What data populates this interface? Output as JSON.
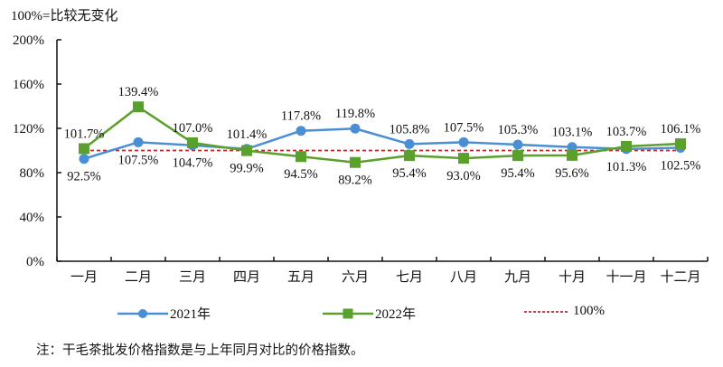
{
  "header": {
    "note": "100%=比较无变化"
  },
  "footnote": "注：干毛茶批发价格指数是与上年同月对比的价格指数。",
  "legend": {
    "s2021": "2021年",
    "s2022": "2022年",
    "ref": "100%"
  },
  "colors": {
    "series_2021": "#4a8fd4",
    "series_2022": "#5aa02c",
    "reference": "#c0272d",
    "axis": "#111111"
  },
  "chart_data": {
    "type": "line",
    "title": "",
    "subtitle": "100%=比较无变化",
    "xlabel": "",
    "ylabel": "",
    "ylim": [
      0,
      200
    ],
    "yticks": [
      "0%",
      "40%",
      "80%",
      "120%",
      "160%",
      "200%"
    ],
    "grid": false,
    "legend_position": "bottom",
    "categories": [
      "一月",
      "二月",
      "三月",
      "四月",
      "五月",
      "六月",
      "七月",
      "八月",
      "九月",
      "十月",
      "十一月",
      "十二月"
    ],
    "series": [
      {
        "name": "2021年",
        "marker": "circle",
        "color": "#4a8fd4",
        "values": [
          92.5,
          107.5,
          104.7,
          101.4,
          117.8,
          119.8,
          105.8,
          107.5,
          105.3,
          103.1,
          101.3,
          102.5
        ],
        "labels": [
          "92.5%",
          "107.5%",
          "104.7%",
          "101.4%",
          "117.8%",
          "119.8%",
          "105.8%",
          "107.5%",
          "105.3%",
          "103.1%",
          "101.3%",
          "102.5%"
        ]
      },
      {
        "name": "2022年",
        "marker": "square",
        "color": "#5aa02c",
        "values": [
          101.7,
          139.4,
          107.0,
          99.9,
          94.5,
          89.2,
          95.4,
          93.0,
          95.4,
          95.6,
          103.7,
          106.1
        ],
        "labels": [
          "101.7%",
          "139.4%",
          "107.0%",
          "99.9%",
          "94.5%",
          "89.2%",
          "95.4%",
          "93.0%",
          "95.4%",
          "95.6%",
          "103.7%",
          "106.1%"
        ]
      },
      {
        "name": "100%",
        "style": "dashed",
        "color": "#c0272d",
        "values": [
          100,
          100,
          100,
          100,
          100,
          100,
          100,
          100,
          100,
          100,
          100,
          100
        ]
      }
    ],
    "annotations": [
      {
        "series": "2021年",
        "index": 0,
        "text": "92.5%",
        "pos": "below"
      },
      {
        "series": "2021年",
        "index": 1,
        "text": "107.5%",
        "pos": "below"
      },
      {
        "series": "2021年",
        "index": 2,
        "text": "104.7%",
        "pos": "below"
      },
      {
        "series": "2021年",
        "index": 3,
        "text": "101.4%",
        "pos": "above"
      },
      {
        "series": "2021年",
        "index": 4,
        "text": "117.8%",
        "pos": "above"
      },
      {
        "series": "2021年",
        "index": 5,
        "text": "119.8%",
        "pos": "above"
      },
      {
        "series": "2021年",
        "index": 6,
        "text": "105.8%",
        "pos": "above"
      },
      {
        "series": "2021年",
        "index": 7,
        "text": "107.5%",
        "pos": "above"
      },
      {
        "series": "2021年",
        "index": 8,
        "text": "105.3%",
        "pos": "above"
      },
      {
        "series": "2021年",
        "index": 9,
        "text": "103.1%",
        "pos": "above"
      },
      {
        "series": "2021年",
        "index": 10,
        "text": "101.3%",
        "pos": "below"
      },
      {
        "series": "2021年",
        "index": 11,
        "text": "102.5%",
        "pos": "below"
      },
      {
        "series": "2022年",
        "index": 0,
        "text": "101.7%",
        "pos": "above"
      },
      {
        "series": "2022年",
        "index": 1,
        "text": "139.4%",
        "pos": "above"
      },
      {
        "series": "2022年",
        "index": 2,
        "text": "107.0%",
        "pos": "above"
      },
      {
        "series": "2022年",
        "index": 3,
        "text": "99.9%",
        "pos": "below"
      },
      {
        "series": "2022年",
        "index": 4,
        "text": "94.5%",
        "pos": "below"
      },
      {
        "series": "2022年",
        "index": 5,
        "text": "89.2%",
        "pos": "below"
      },
      {
        "series": "2022年",
        "index": 6,
        "text": "95.4%",
        "pos": "below"
      },
      {
        "series": "2022年",
        "index": 7,
        "text": "93.0%",
        "pos": "below"
      },
      {
        "series": "2022年",
        "index": 8,
        "text": "95.4%",
        "pos": "below"
      },
      {
        "series": "2022年",
        "index": 9,
        "text": "95.6%",
        "pos": "below"
      },
      {
        "series": "2022年",
        "index": 10,
        "text": "103.7%",
        "pos": "above"
      },
      {
        "series": "2022年",
        "index": 11,
        "text": "106.1%",
        "pos": "above"
      }
    ]
  }
}
